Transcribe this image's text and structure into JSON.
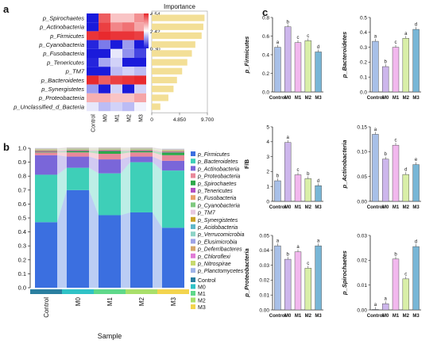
{
  "panel_letters": [
    "a",
    "b",
    "c"
  ],
  "chart_data": [
    {
      "panel": "a",
      "type": "heatmap",
      "rows": [
        "p_Spirochaetes",
        "p_Actinobacteria",
        "p_Firmicutes",
        "p_Cyanobacteria",
        "p_Fusobacteria",
        "p_Tenericutes",
        "p_TM7",
        "p_Bacteroidetes",
        "p_Synergistetes",
        "p_Proteobacteria",
        "p_Unclassified_d_Bacteria"
      ],
      "columns": [
        "Control",
        "M0",
        "M1",
        "M2",
        "M3"
      ],
      "values": [
        [
          0.3,
          4.0,
          3.0,
          3.0,
          3.5
        ],
        [
          0.3,
          4.3,
          3.6,
          3.8,
          3.3
        ],
        [
          4.4,
          4.5,
          4.4,
          4.4,
          4.3
        ],
        [
          0.4,
          1.2,
          0.3,
          1.5,
          0.3
        ],
        [
          0.3,
          0.3,
          2.2,
          1.4,
          0.7
        ],
        [
          0.4,
          1.6,
          2.0,
          0.3,
          0.3
        ],
        [
          0.3,
          0.3,
          1.8,
          2.0,
          1.8
        ],
        [
          4.5,
          4.0,
          4.3,
          4.4,
          4.5
        ],
        [
          1.5,
          0.3,
          2.0,
          0.3,
          2.0
        ],
        [
          3.2,
          3.2,
          3.0,
          3.0,
          3.3
        ],
        [
          2.2,
          1.8,
          2.0,
          1.8,
          2.3
        ]
      ],
      "colorbar": {
        "ticks": [
          "4.54",
          "2.42",
          "0.30"
        ],
        "colors": [
          "#e8262a",
          "#ffffff",
          "#1a1adb"
        ]
      }
    },
    {
      "panel": "a",
      "type": "bar",
      "title": "Importance",
      "categories": [
        "p_Spirochaetes",
        "p_Actinobacteria",
        "p_Firmicutes",
        "p_Cyanobacteria",
        "p_Fusobacteria",
        "p_Tenericutes",
        "p_TM7",
        "p_Bacteroidetes",
        "p_Synergistetes",
        "p_Proteobacteria",
        "p_Unclassified_d_Bacteria"
      ],
      "values": [
        9.2,
        9.0,
        8.7,
        7.6,
        7.0,
        6.2,
        5.3,
        4.4,
        3.8,
        2.9,
        1.5
      ],
      "xlim": [
        0,
        9.7
      ],
      "xticks": [
        "0",
        "4.850",
        "9.700"
      ],
      "color": "#f3df96"
    },
    {
      "panel": "b",
      "type": "bar",
      "stacked": true,
      "xlabel": "Sample",
      "categories": [
        "Control",
        "M0",
        "M1",
        "M2",
        "M3"
      ],
      "ylim": [
        0,
        1
      ],
      "yticks": [
        "0.0",
        "0.1",
        "0.2",
        "0.3",
        "0.4",
        "0.5",
        "0.6",
        "0.7",
        "0.8",
        "0.9",
        "1.0"
      ],
      "series": [
        {
          "name": "p_Firmicutes",
          "color": "#3b6fe0",
          "values": [
            0.47,
            0.7,
            0.52,
            0.54,
            0.43
          ]
        },
        {
          "name": "p_Bacteroidetes",
          "color": "#3ecfb8",
          "values": [
            0.34,
            0.16,
            0.3,
            0.36,
            0.41
          ]
        },
        {
          "name": "p_Actinobacteria",
          "color": "#7a66d9",
          "values": [
            0.14,
            0.08,
            0.1,
            0.04,
            0.07
          ]
        },
        {
          "name": "p_Proteobacteria",
          "color": "#e8889a",
          "values": [
            0.02,
            0.03,
            0.04,
            0.03,
            0.04
          ]
        },
        {
          "name": "p_Spirochaetes",
          "color": "#2ea84a",
          "values": [
            0.005,
            0.01,
            0.02,
            0.01,
            0.02
          ]
        },
        {
          "name": "p_Tenericutes",
          "color": "#b44fc4",
          "values": [
            0.005,
            0.005,
            0.005,
            0.005,
            0.005
          ]
        },
        {
          "name": "p_Fusobacteria",
          "color": "#e8a16a",
          "values": [
            0.005,
            0.005,
            0.005,
            0.005,
            0.005
          ]
        },
        {
          "name": "p_Cyanobacteria",
          "color": "#7fc97f",
          "values": [
            0.004,
            0.004,
            0.004,
            0.004,
            0.004
          ]
        },
        {
          "name": "p_TM7",
          "color": "#e7c9e0",
          "values": [
            0.003,
            0.003,
            0.003,
            0.003,
            0.003
          ]
        },
        {
          "name": "p_Synergistetes",
          "color": "#c9a227",
          "values": [
            0.002,
            0.002,
            0.002,
            0.002,
            0.002
          ]
        },
        {
          "name": "p_Acidobacteria",
          "color": "#5fb7c9",
          "values": [
            0.001,
            0.001,
            0.001,
            0.001,
            0.001
          ]
        },
        {
          "name": "p_Verrucomicrobia",
          "color": "#8dd3c7",
          "values": [
            0.001,
            0.001,
            0.001,
            0.001,
            0.001
          ]
        },
        {
          "name": "p_Elusimicrobia",
          "color": "#9ea3e6",
          "values": [
            0.001,
            0.001,
            0.001,
            0.001,
            0.001
          ]
        },
        {
          "name": "p_Deferribacteres",
          "color": "#d6a76a",
          "values": [
            0.001,
            0.001,
            0.001,
            0.001,
            0.001
          ]
        },
        {
          "name": "p_Chloroflexi",
          "color": "#e07bd6",
          "values": [
            0.001,
            0.001,
            0.001,
            0.001,
            0.001
          ]
        },
        {
          "name": "p_Nitrospirae",
          "color": "#c7d96e",
          "values": [
            0.001,
            0.001,
            0.001,
            0.001,
            0.001
          ]
        },
        {
          "name": "p_Planctomycetes",
          "color": "#a0b4e8",
          "values": [
            0.001,
            0.001,
            0.001,
            0.001,
            0.001
          ]
        }
      ],
      "group_legend": [
        {
          "name": "Control",
          "color": "#2a7fa0"
        },
        {
          "name": "M0",
          "color": "#2fc2c6"
        },
        {
          "name": "M1",
          "color": "#5fd88a"
        },
        {
          "name": "M2",
          "color": "#a9df6a"
        },
        {
          "name": "M3",
          "color": "#f3d44e"
        }
      ]
    },
    {
      "panel": "c",
      "type": "bar",
      "ylabel": "p_Firmicutes",
      "categories": [
        "Control",
        "M0",
        "M1",
        "M2",
        "M3"
      ],
      "values": [
        0.48,
        0.7,
        0.53,
        0.55,
        0.43
      ],
      "letters": [
        "a",
        "b",
        "c",
        "c",
        "d"
      ],
      "ylim": [
        0,
        0.8
      ],
      "yticks": [
        "0.0",
        "0.2",
        "0.4",
        "0.6",
        "0.8"
      ]
    },
    {
      "panel": "c",
      "type": "bar",
      "ylabel": "p_Bacteroidetes",
      "categories": [
        "Control",
        "M0",
        "M1",
        "M2",
        "M3"
      ],
      "values": [
        0.34,
        0.17,
        0.3,
        0.36,
        0.42
      ],
      "letters": [
        "a",
        "b",
        "c",
        "a",
        "d"
      ],
      "ylim": [
        0,
        0.5
      ],
      "yticks": [
        "0.0",
        "0.1",
        "0.2",
        "0.3",
        "0.4",
        "0.5"
      ]
    },
    {
      "panel": "c",
      "type": "bar",
      "ylabel": "F/B",
      "categories": [
        "Control",
        "M0",
        "M1",
        "M2",
        "M3"
      ],
      "values": [
        1.38,
        3.95,
        1.78,
        1.52,
        1.05
      ],
      "letters": [
        "b",
        "a",
        "c",
        "b",
        "d"
      ],
      "ylim": [
        0,
        5
      ],
      "yticks": [
        "0",
        "1",
        "2",
        "3",
        "4",
        "5"
      ]
    },
    {
      "panel": "c",
      "type": "bar",
      "ylabel": "p_Actinobacteria",
      "categories": [
        "Control",
        "M0",
        "M1",
        "M2",
        "M3"
      ],
      "values": [
        0.135,
        0.085,
        0.113,
        0.054,
        0.074
      ],
      "letters": [
        "a",
        "b",
        "c",
        "d",
        "e"
      ],
      "ylim": [
        0,
        0.15
      ],
      "yticks": [
        "0.00",
        "0.05",
        "0.10",
        "0.15"
      ]
    },
    {
      "panel": "c",
      "type": "bar",
      "ylabel": "p_Proteobacteria",
      "categories": [
        "Control",
        "M0",
        "M1",
        "M2",
        "M3"
      ],
      "values": [
        0.043,
        0.034,
        0.039,
        0.028,
        0.043
      ],
      "letters": [
        "a",
        "b",
        "a",
        "c",
        "a"
      ],
      "ylim": [
        0,
        0.05
      ],
      "yticks": [
        "0.00",
        "0.01",
        "0.02",
        "0.03",
        "0.04",
        "0.05"
      ]
    },
    {
      "panel": "c",
      "type": "bar",
      "ylabel": "p_Spirochaetes",
      "categories": [
        "Control",
        "M0",
        "M1",
        "M2",
        "M3"
      ],
      "values": [
        0.0002,
        0.0025,
        0.0205,
        0.0125,
        0.0255
      ],
      "letters": [
        "a",
        "a",
        "b",
        "c",
        "d"
      ],
      "ylim": [
        0,
        0.03
      ],
      "yticks": [
        "0.00",
        "0.01",
        "0.02",
        "0.03"
      ]
    }
  ],
  "bar_colors": [
    "#a8c0e8",
    "#cdb6ec",
    "#f2b8ee",
    "#d9efa8",
    "#78b6d6"
  ]
}
